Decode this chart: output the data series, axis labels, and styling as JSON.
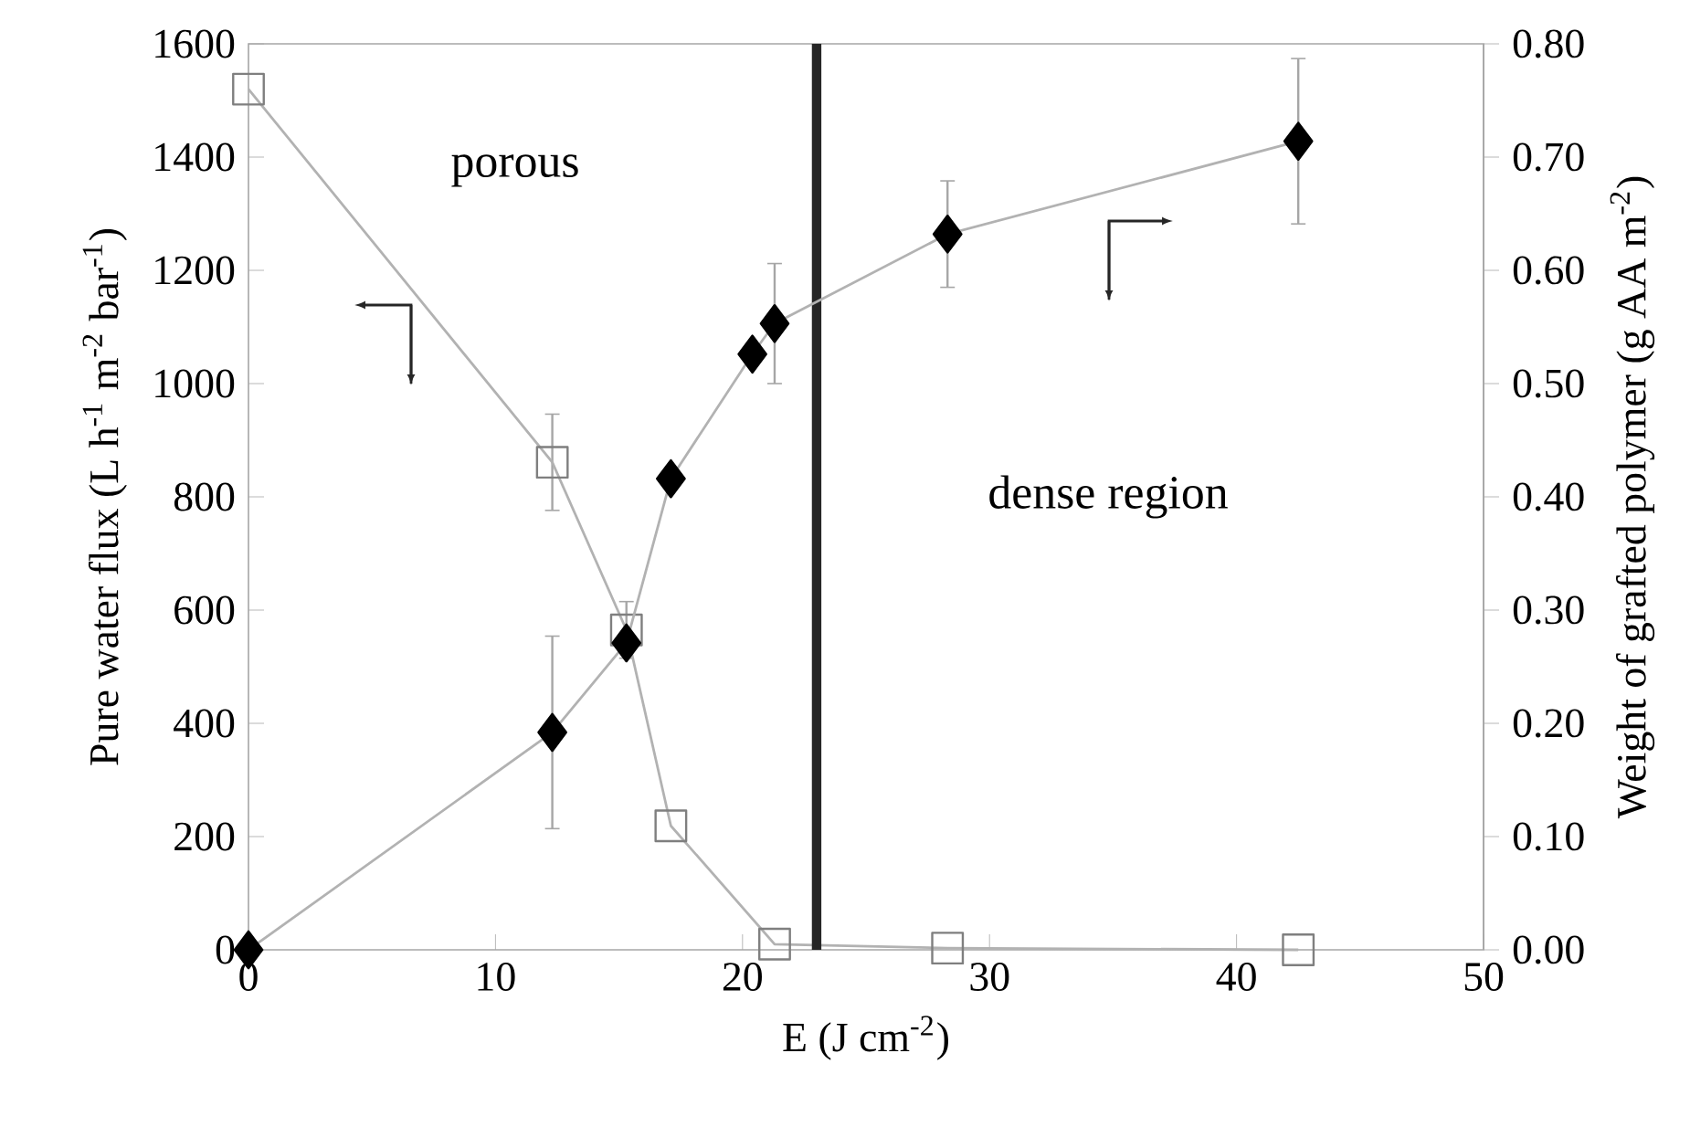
{
  "chart_data": {
    "type": "line",
    "xlabel": "E (J cm$^{-2}$)",
    "ylabel": "Pure water flux (L h$^{-1}$ m$^{-2}$ bar$^{-1}$)",
    "y2label": "Weight of grafted polymer (g AA m$^{-2}$)",
    "xlim": [
      0,
      50
    ],
    "xticks": [
      0,
      10,
      20,
      30,
      40,
      50
    ],
    "ylim": [
      0,
      1600
    ],
    "yticks": [
      0,
      200,
      400,
      600,
      800,
      1000,
      1200,
      1400,
      1600
    ],
    "y2lim": [
      0,
      0.8
    ],
    "y2ticks": [
      {
        "value": 0,
        "label": "0.00"
      },
      {
        "value": 0.1,
        "label": "0.10"
      },
      {
        "value": 0.2,
        "label": "0.20"
      },
      {
        "value": 0.3,
        "label": "0.30"
      },
      {
        "value": 0.4,
        "label": "0.40"
      },
      {
        "value": 0.5,
        "label": "0.50"
      },
      {
        "value": 0.6,
        "label": "0.60"
      },
      {
        "value": 0.7,
        "label": "0.70"
      },
      {
        "value": 0.8,
        "label": "0.80"
      }
    ],
    "series": [
      {
        "color": "#7f7f7f",
        "marker": "square",
        "x": [
          0,
          12.3,
          15.3,
          17.1,
          21.3,
          28.3,
          42.5
        ],
        "values": [
          1520,
          861,
          565,
          219,
          10,
          3,
          0
        ],
        "errors": [
          null,
          85,
          50,
          null,
          null,
          null,
          null
        ]
      },
      {
        "color": "#000000",
        "marker": "diamond",
        "axis": "y2",
        "x": [
          0,
          12.3,
          15.3,
          17.1,
          20.4,
          21.3,
          28.3,
          42.5
        ],
        "values": [
          0,
          0.192,
          0.271,
          0.416,
          0.526,
          0.553,
          0.632,
          0.714
        ],
        "errors": [
          null,
          0.085,
          null,
          null,
          null,
          0.053,
          0.047,
          0.073
        ]
      }
    ],
    "ref_lines": [
      {
        "axis": "x",
        "value": 23,
        "color": "#262626"
      }
    ],
    "annotations": [
      "porous",
      "dense region"
    ]
  }
}
